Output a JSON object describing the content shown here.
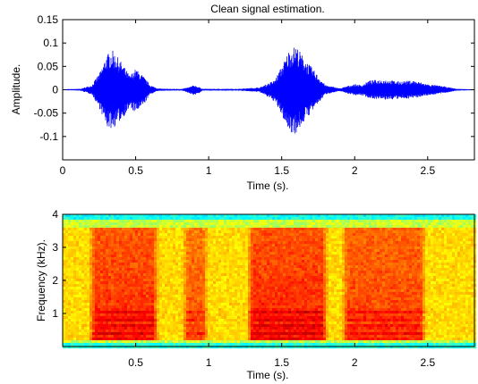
{
  "chart_data": [
    {
      "type": "line",
      "title": "Clean signal estimation.",
      "xlabel": "Time (s).",
      "ylabel": "Amplitude.",
      "xlim": [
        0,
        2.82
      ],
      "ylim": [
        -0.15,
        0.15
      ],
      "xticks": [
        0,
        0.5,
        1,
        1.5,
        2,
        2.5
      ],
      "xtick_labels": [
        "0",
        "0.5",
        "1",
        "1.5",
        "2",
        "2.5"
      ],
      "yticks": [
        0.15,
        0.1,
        0.05,
        0,
        -0.05,
        -0.1
      ],
      "ytick_labels": [
        "0.15",
        "0.1",
        "0.05",
        "0",
        "-0.05",
        "-0.1"
      ],
      "grid": false,
      "series_color": "#0000ff",
      "envelope": {
        "x": [
          0,
          0.12,
          0.2,
          0.26,
          0.3,
          0.34,
          0.4,
          0.46,
          0.5,
          0.55,
          0.6,
          0.65,
          0.7,
          0.82,
          0.87,
          0.9,
          0.93,
          0.96,
          1.05,
          1.2,
          1.35,
          1.45,
          1.5,
          1.55,
          1.6,
          1.65,
          1.7,
          1.75,
          1.8,
          1.9,
          1.95,
          2.0,
          2.05,
          2.1,
          2.2,
          2.3,
          2.4,
          2.5,
          2.6,
          2.7,
          2.82
        ],
        "upper": [
          0.001,
          0.002,
          0.01,
          0.04,
          0.075,
          0.085,
          0.06,
          0.03,
          0.045,
          0.03,
          0.01,
          0.003,
          0.002,
          0.002,
          0.006,
          0.01,
          0.006,
          0.002,
          0.002,
          0.002,
          0.005,
          0.02,
          0.05,
          0.085,
          0.095,
          0.07,
          0.05,
          0.03,
          0.01,
          0.003,
          0.008,
          0.012,
          0.01,
          0.02,
          0.022,
          0.018,
          0.02,
          0.012,
          0.008,
          0.002,
          0.001
        ],
        "lower": [
          -0.001,
          -0.002,
          -0.01,
          -0.045,
          -0.08,
          -0.085,
          -0.065,
          -0.04,
          -0.05,
          -0.035,
          -0.01,
          -0.003,
          -0.002,
          -0.002,
          -0.008,
          -0.012,
          -0.008,
          -0.002,
          -0.002,
          -0.002,
          -0.005,
          -0.025,
          -0.055,
          -0.09,
          -0.095,
          -0.07,
          -0.05,
          -0.03,
          -0.01,
          -0.003,
          -0.008,
          -0.012,
          -0.012,
          -0.018,
          -0.022,
          -0.02,
          -0.018,
          -0.012,
          -0.008,
          -0.002,
          -0.001
        ]
      }
    },
    {
      "type": "heatmap",
      "title": "",
      "xlabel": "Time (s).",
      "ylabel": "Frequency (kHz).",
      "xlim": [
        0,
        2.82
      ],
      "ylim": [
        0,
        4
      ],
      "xticks": [
        0.5,
        1,
        1.5,
        2,
        2.5
      ],
      "xtick_labels": [
        "0.5",
        "1",
        "1.5",
        "2",
        "2.5"
      ],
      "yticks": [
        4,
        3,
        2,
        1
      ],
      "ytick_labels": [
        "4",
        "3",
        "2",
        "1"
      ],
      "colormap": "jet",
      "speech_segments": [
        {
          "start": 0.22,
          "end": 0.62,
          "level": 0.9
        },
        {
          "start": 0.86,
          "end": 0.96,
          "level": 0.7
        },
        {
          "start": 1.3,
          "end": 1.78,
          "level": 0.95
        },
        {
          "start": 1.95,
          "end": 2.45,
          "level": 0.8
        }
      ]
    }
  ]
}
